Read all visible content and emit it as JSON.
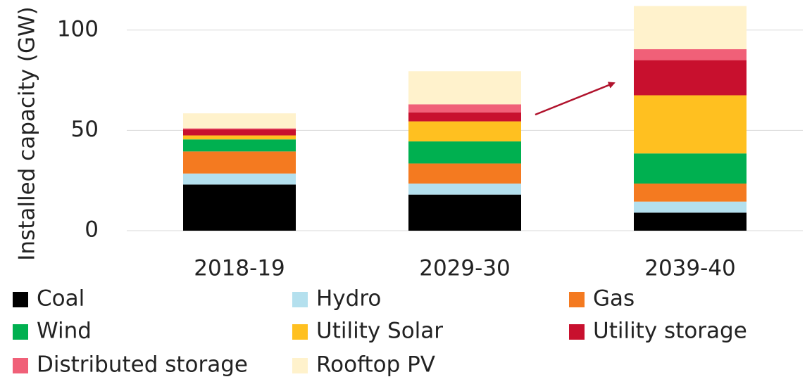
{
  "chart_data": {
    "type": "stacked_bar",
    "y_label": "Installed capacity (GW)",
    "categories": [
      "2018-19",
      "2029-30",
      "2039-40"
    ],
    "series": [
      {
        "name": "Coal",
        "color": "#000000",
        "values": [
          23,
          18,
          9
        ]
      },
      {
        "name": "Hydro",
        "color": "#b4e0ee",
        "values": [
          5.5,
          5.5,
          5.5
        ]
      },
      {
        "name": "Gas",
        "color": "#f47a20",
        "values": [
          11,
          10,
          9
        ]
      },
      {
        "name": "Wind",
        "color": "#00b050",
        "values": [
          6,
          11,
          15
        ]
      },
      {
        "name": "Utility Solar",
        "color": "#ffc020",
        "values": [
          2,
          10,
          29
        ]
      },
      {
        "name": "Utility storage",
        "color": "#c8102e",
        "values": [
          3,
          4.5,
          17.5
        ]
      },
      {
        "name": "Distributed storage",
        "color": "#f06078",
        "values": [
          0.5,
          4,
          5.5
        ]
      },
      {
        "name": "Rooftop PV",
        "color": "#fff2cc",
        "values": [
          7.5,
          16.5,
          21.5
        ]
      }
    ],
    "ylim": [
      0,
      115
    ],
    "yticks": [
      0,
      50,
      100
    ],
    "grid": true
  }
}
